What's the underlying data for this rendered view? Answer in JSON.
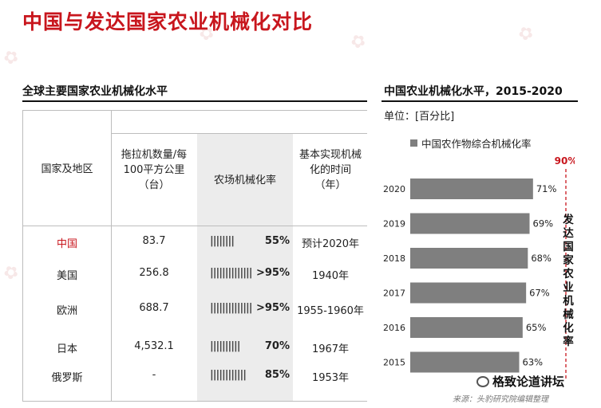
{
  "title": "中国与发达国家农业机械化对比",
  "table": {
    "title": "全球主要国家农业机械化水平",
    "headers": {
      "region": "国家及地区",
      "tractor": [
        "拖拉机数量/每",
        "100平方公里",
        "（台）"
      ],
      "rate": "农场机械化率",
      "year": [
        "基本实现机械",
        "化的时间",
        "（年）"
      ]
    },
    "rows": [
      {
        "region": "中国",
        "tractor": "83.7",
        "ticks": "||||||||",
        "rate": "55%",
        "year": "预计2020年"
      },
      {
        "region": "美国",
        "tractor": "256.8",
        "ticks": "||||||||||||||",
        "rate": ">95%",
        "year": "1940年"
      },
      {
        "region": "欧洲",
        "tractor": "688.7",
        "ticks": "||||||||||||||",
        "rate": ">95%",
        "year": "1955-1960年"
      },
      {
        "region": "日本",
        "tractor": "4,532.1",
        "ticks": "||||||||||",
        "rate": "70%",
        "year": "1967年"
      },
      {
        "region": "俄罗斯",
        "tractor": "-",
        "ticks": "||||||||||||",
        "rate": "85%",
        "year": "1953年"
      }
    ]
  },
  "colors": {
    "title_red": "#c8161d",
    "bar": "#7f7f7f",
    "highlight": "#c8161d"
  },
  "chart_data": {
    "type": "bar",
    "orientation": "horizontal",
    "title": "中国农业机械化水平，2015-2020",
    "unit": "单位：[百分比]",
    "categories": [
      "2020",
      "2019",
      "2018",
      "2017",
      "2016",
      "2015"
    ],
    "series": [
      {
        "name": "中国农作物综合机械化率",
        "values": [
          71,
          69,
          68,
          67,
          65,
          63
        ],
        "labels": [
          "71%",
          "69%",
          "68%",
          "67%",
          "65%",
          "63%"
        ]
      }
    ],
    "target_line": {
      "value": 90,
      "label": "90%"
    },
    "side_label": "发达国家农业机械化率",
    "xlim": [
      0,
      90
    ]
  },
  "footer": {
    "source": "来源：头豹研究院编辑整理",
    "badge": "格致论道讲坛"
  }
}
